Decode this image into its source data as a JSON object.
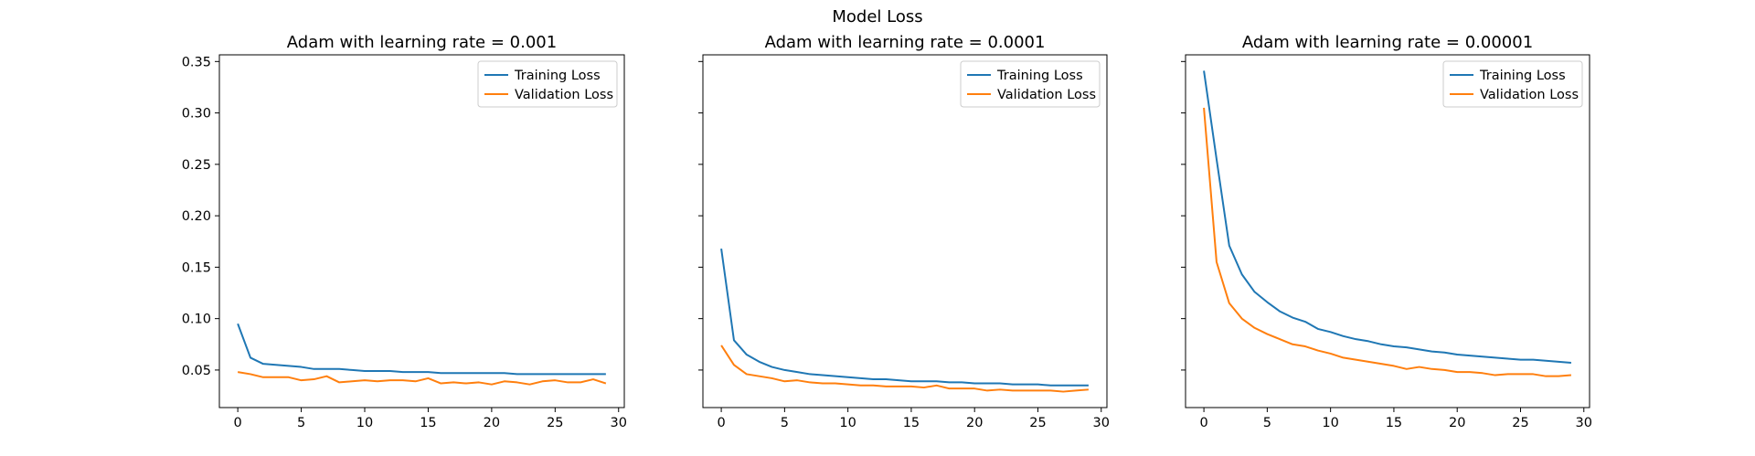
{
  "figure": {
    "title": "Model Loss"
  },
  "chart_data": [
    {
      "type": "line",
      "title": "Adam with learning rate = 0.001",
      "xlabel": "",
      "ylabel": "",
      "xlim": [
        -1.45,
        30.45
      ],
      "ylim": [
        0.0135,
        0.3565
      ],
      "xticks": [
        0,
        5,
        10,
        15,
        20,
        25,
        30
      ],
      "yticks": [
        0.05,
        0.1,
        0.15,
        0.2,
        0.25,
        0.3,
        0.35
      ],
      "ytick_labels": [
        "0.05",
        "0.10",
        "0.15",
        "0.20",
        "0.25",
        "0.30",
        "0.35"
      ],
      "show_yticklabels": true,
      "grid": false,
      "legend": "upper right",
      "x": [
        0,
        1,
        2,
        3,
        4,
        5,
        6,
        7,
        8,
        9,
        10,
        11,
        12,
        13,
        14,
        15,
        16,
        17,
        18,
        19,
        20,
        21,
        22,
        23,
        24,
        25,
        26,
        27,
        28,
        29
      ],
      "series": [
        {
          "name": "Training Loss",
          "color": "#1f77b4",
          "values": [
            0.095,
            0.062,
            0.056,
            0.055,
            0.054,
            0.053,
            0.051,
            0.051,
            0.051,
            0.05,
            0.049,
            0.049,
            0.049,
            0.048,
            0.048,
            0.048,
            0.047,
            0.047,
            0.047,
            0.047,
            0.047,
            0.047,
            0.046,
            0.046,
            0.046,
            0.046,
            0.046,
            0.046,
            0.046,
            0.046
          ]
        },
        {
          "name": "Validation Loss",
          "color": "#ff7f0e",
          "values": [
            0.048,
            0.046,
            0.043,
            0.043,
            0.043,
            0.04,
            0.041,
            0.044,
            0.038,
            0.039,
            0.04,
            0.039,
            0.04,
            0.04,
            0.039,
            0.042,
            0.037,
            0.038,
            0.037,
            0.038,
            0.036,
            0.039,
            0.038,
            0.036,
            0.039,
            0.04,
            0.038,
            0.038,
            0.041,
            0.037
          ]
        }
      ]
    },
    {
      "type": "line",
      "title": "Adam with learning rate = 0.0001",
      "xlabel": "",
      "ylabel": "",
      "xlim": [
        -1.45,
        30.45
      ],
      "ylim": [
        0.0135,
        0.3565
      ],
      "xticks": [
        0,
        5,
        10,
        15,
        20,
        25,
        30
      ],
      "yticks": [
        0.05,
        0.1,
        0.15,
        0.2,
        0.25,
        0.3,
        0.35
      ],
      "ytick_labels": [
        "0.05",
        "0.10",
        "0.15",
        "0.20",
        "0.25",
        "0.30",
        "0.35"
      ],
      "show_yticklabels": false,
      "grid": false,
      "legend": "upper right",
      "x": [
        0,
        1,
        2,
        3,
        4,
        5,
        6,
        7,
        8,
        9,
        10,
        11,
        12,
        13,
        14,
        15,
        16,
        17,
        18,
        19,
        20,
        21,
        22,
        23,
        24,
        25,
        26,
        27,
        28,
        29
      ],
      "series": [
        {
          "name": "Training Loss",
          "color": "#1f77b4",
          "values": [
            0.168,
            0.079,
            0.065,
            0.058,
            0.053,
            0.05,
            0.048,
            0.046,
            0.045,
            0.044,
            0.043,
            0.042,
            0.041,
            0.041,
            0.04,
            0.039,
            0.039,
            0.039,
            0.038,
            0.038,
            0.037,
            0.037,
            0.037,
            0.036,
            0.036,
            0.036,
            0.035,
            0.035,
            0.035,
            0.035
          ]
        },
        {
          "name": "Validation Loss",
          "color": "#ff7f0e",
          "values": [
            0.074,
            0.055,
            0.046,
            0.044,
            0.042,
            0.039,
            0.04,
            0.038,
            0.037,
            0.037,
            0.036,
            0.035,
            0.035,
            0.034,
            0.034,
            0.034,
            0.033,
            0.035,
            0.032,
            0.032,
            0.032,
            0.03,
            0.031,
            0.03,
            0.03,
            0.03,
            0.03,
            0.029,
            0.03,
            0.031
          ]
        }
      ]
    },
    {
      "type": "line",
      "title": "Adam with learning rate = 0.00001",
      "xlabel": "",
      "ylabel": "",
      "xlim": [
        -1.45,
        30.45
      ],
      "ylim": [
        0.0135,
        0.3565
      ],
      "xticks": [
        0,
        5,
        10,
        15,
        20,
        25,
        30
      ],
      "yticks": [
        0.05,
        0.1,
        0.15,
        0.2,
        0.25,
        0.3,
        0.35
      ],
      "ytick_labels": [
        "0.05",
        "0.10",
        "0.15",
        "0.20",
        "0.25",
        "0.30",
        "0.35"
      ],
      "show_yticklabels": false,
      "grid": false,
      "legend": "upper right",
      "x": [
        0,
        1,
        2,
        3,
        4,
        5,
        6,
        7,
        8,
        9,
        10,
        11,
        12,
        13,
        14,
        15,
        16,
        17,
        18,
        19,
        20,
        21,
        22,
        23,
        24,
        25,
        26,
        27,
        28,
        29
      ],
      "series": [
        {
          "name": "Training Loss",
          "color": "#1f77b4",
          "values": [
            0.341,
            0.255,
            0.171,
            0.143,
            0.126,
            0.116,
            0.107,
            0.101,
            0.097,
            0.09,
            0.087,
            0.083,
            0.08,
            0.078,
            0.075,
            0.073,
            0.072,
            0.07,
            0.068,
            0.067,
            0.065,
            0.064,
            0.063,
            0.062,
            0.061,
            0.06,
            0.06,
            0.059,
            0.058,
            0.057
          ]
        },
        {
          "name": "Validation Loss",
          "color": "#ff7f0e",
          "values": [
            0.305,
            0.155,
            0.115,
            0.1,
            0.091,
            0.085,
            0.08,
            0.075,
            0.073,
            0.069,
            0.066,
            0.062,
            0.06,
            0.058,
            0.056,
            0.054,
            0.051,
            0.053,
            0.051,
            0.05,
            0.048,
            0.048,
            0.047,
            0.045,
            0.046,
            0.046,
            0.046,
            0.044,
            0.044,
            0.045
          ]
        }
      ]
    }
  ]
}
